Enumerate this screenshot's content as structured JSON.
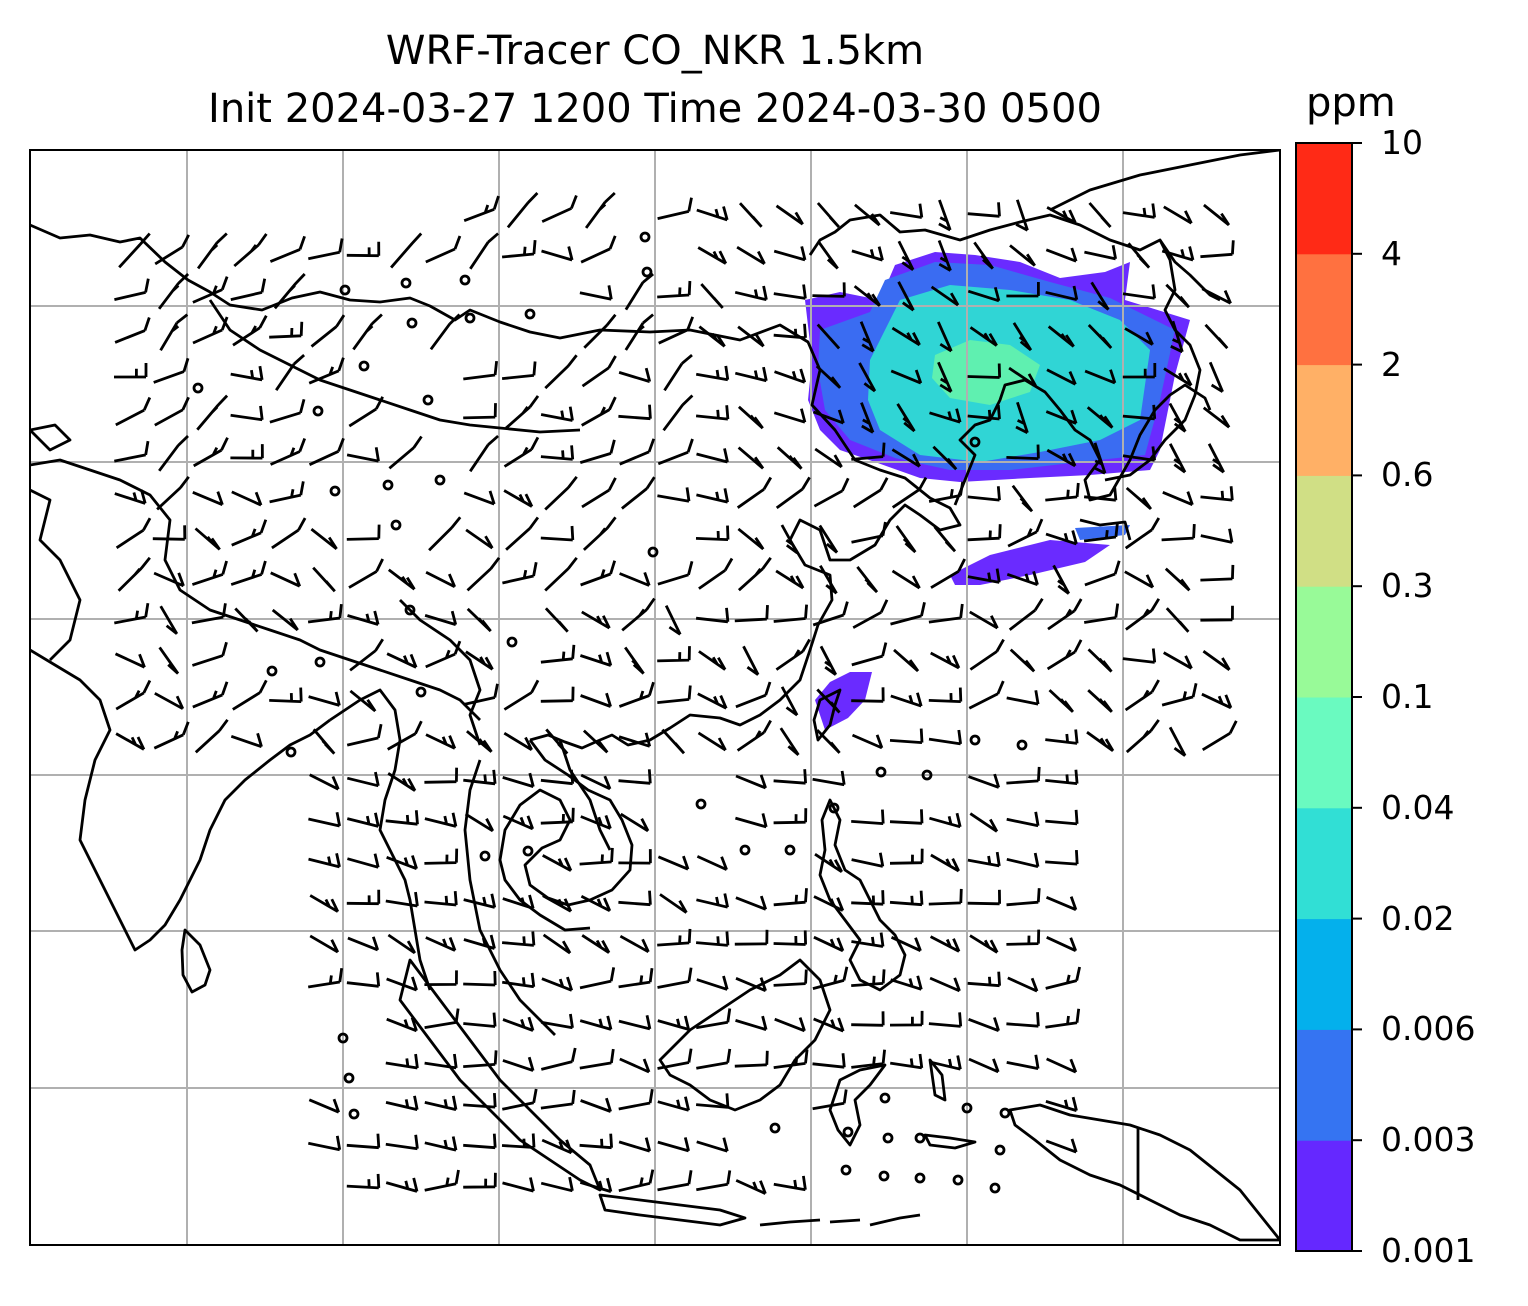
{
  "title": {
    "line1": "WRF-Tracer CO_NKR 1.5km",
    "line2": "Init 2024-03-27 1200 Time 2024-03-30 0500"
  },
  "colorbar": {
    "unit": "ppm",
    "levels": [
      "0.001",
      "0.003",
      "0.006",
      "0.02",
      "0.04",
      "0.1",
      "0.3",
      "0.6",
      "2",
      "4",
      "10"
    ],
    "colors": [
      "#6528ff",
      "#3574f2",
      "#04b0ec",
      "#31dfd5",
      "#6afac0",
      "#98fa98",
      "#d0df85",
      "#ffb066",
      "#ff7140",
      "#ff2a16"
    ]
  },
  "map": {
    "tracer_colors": [
      "#6a2bff",
      "#3a6cf2",
      "#30d5d5",
      "#5ff0b0"
    ],
    "gridline_color": "#b0b0b0",
    "coastline_color": "#000000",
    "wind_barbs": "black",
    "calm_marker": "open-circle"
  }
}
